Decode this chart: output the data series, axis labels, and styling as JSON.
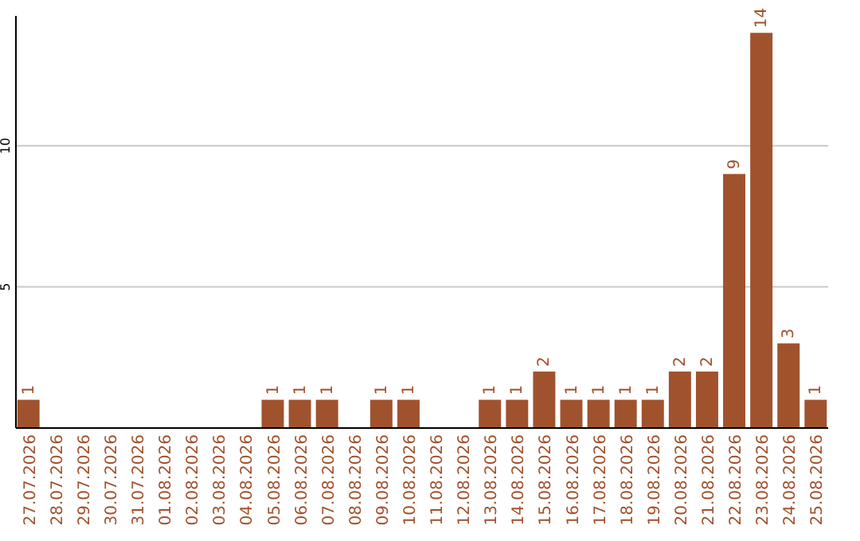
{
  "chart_data": {
    "type": "bar",
    "categories": [
      "27.07.2026",
      "28.07.2026",
      "29.07.2026",
      "30.07.2026",
      "31.07.2026",
      "01.08.2026",
      "02.08.2026",
      "03.08.2026",
      "04.08.2026",
      "05.08.2026",
      "06.08.2026",
      "07.08.2026",
      "08.08.2026",
      "09.08.2026",
      "10.08.2026",
      "11.08.2026",
      "12.08.2026",
      "13.08.2026",
      "14.08.2026",
      "15.08.2026",
      "16.08.2026",
      "17.08.2026",
      "18.08.2026",
      "19.08.2026",
      "20.08.2026",
      "21.08.2026",
      "22.08.2026",
      "23.08.2026",
      "24.08.2026",
      "25.08.2026"
    ],
    "values": [
      1,
      0,
      0,
      0,
      0,
      0,
      0,
      0,
      0,
      1,
      1,
      1,
      0,
      1,
      1,
      0,
      0,
      1,
      1,
      2,
      1,
      1,
      1,
      1,
      2,
      2,
      9,
      14,
      3,
      1
    ],
    "value_labels": [
      "1",
      null,
      null,
      null,
      null,
      null,
      null,
      null,
      null,
      "1",
      "1",
      "1",
      null,
      "1",
      "1",
      null,
      null,
      "1",
      "1",
      "2",
      "1",
      "1",
      "1",
      "1",
      "2",
      "2",
      "9",
      "14",
      "3",
      "1"
    ],
    "color": "#a0522d",
    "ylim": [
      0,
      14.6
    ],
    "yticks": [
      5,
      10
    ],
    "grid": "y"
  }
}
